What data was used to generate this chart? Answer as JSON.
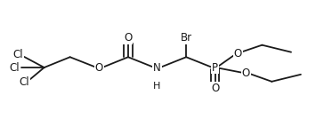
{
  "bg_color": "#ffffff",
  "line_color": "#1a1a1a",
  "line_width": 1.3,
  "font_size": 8.5,
  "figsize": [
    3.64,
    1.52
  ],
  "dpi": 100,
  "xlim": [
    0,
    1.0
  ],
  "ylim": [
    0,
    1.0
  ]
}
